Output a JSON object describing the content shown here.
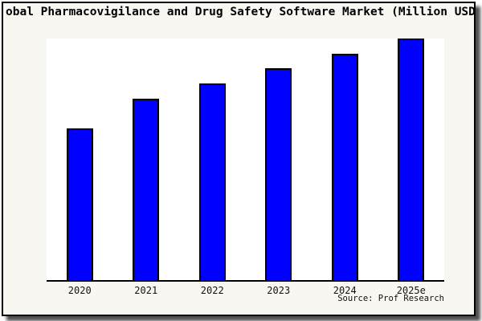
{
  "figure": {
    "background": "#f8f7f2",
    "frame_border_color": "#000000",
    "shadow_color": "#4f4f4f"
  },
  "chart_data": {
    "type": "bar",
    "title": "obal Pharmacovigilance and Drug Safety Software Market (Million USD",
    "categories": [
      "2020",
      "2021",
      "2022",
      "2023",
      "2024",
      "2025e"
    ],
    "values": [
      189,
      226,
      245,
      264,
      282,
      301
    ],
    "value_note": "y-axis unlabeled in image; values are relative bar heights (pixels)",
    "ylim": [
      0,
      301
    ],
    "xlabel": "",
    "ylabel": "",
    "grid": false,
    "legend": false,
    "plot_bg": "#ffffff",
    "bar_color": "#0000ff",
    "bar_border_color": "#000000",
    "axis_line_color": "#000000",
    "source": "Source: Prof Research"
  }
}
